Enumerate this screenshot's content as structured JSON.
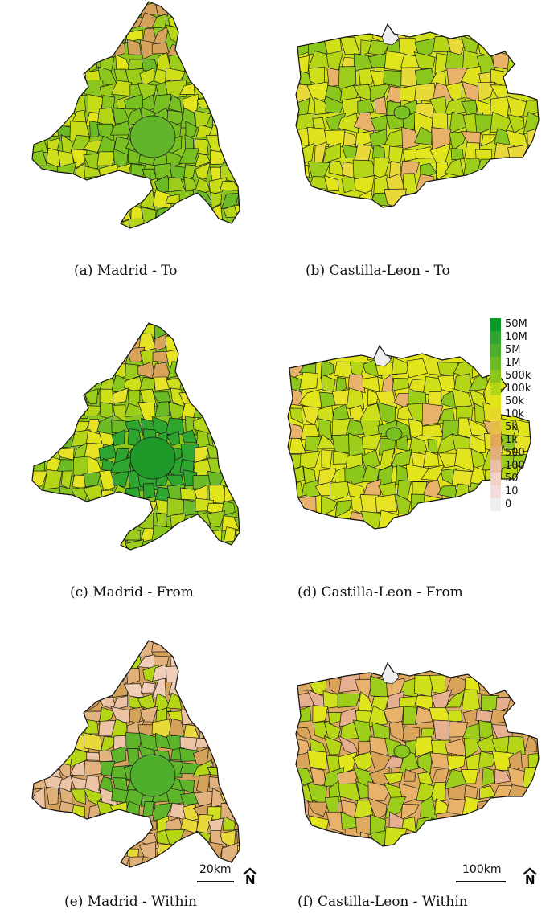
{
  "panels": [
    {
      "region": "madrid",
      "caption": "(a) Madrid - To",
      "palette": [
        "#8bc61d",
        "#9ccd1a",
        "#b5d617",
        "#cfe01a",
        "#6cba26",
        "#e2e51b",
        "#c7db17"
      ],
      "core": "#78bf22",
      "coreInner": "#62b52a",
      "edge": "#d4a25a"
    },
    {
      "region": "castilla",
      "caption": "(b) Castilla-Leon - To",
      "palette": [
        "#cfe01a",
        "#b5d617",
        "#e2e51b",
        "#9ccd1a",
        "#8bc61d",
        "#dfe21c",
        "#e8d83a"
      ],
      "core": "#8bc61d",
      "coreInner": "#78bf22",
      "edge": "#e8b26a"
    },
    {
      "region": "madrid",
      "caption": "(c) Madrid - From",
      "palette": [
        "#8bc61d",
        "#9ccd1a",
        "#b5d617",
        "#cfe01a",
        "#e2e51b",
        "#e8e227",
        "#6cba26"
      ],
      "core": "#2ea52f",
      "coreInner": "#1f9a2a",
      "edge": "#d9a35a"
    },
    {
      "region": "castilla",
      "caption": "(d) Castilla-Leon - From",
      "palette": [
        "#e2e51b",
        "#cfe01a",
        "#b5d617",
        "#e8e227",
        "#9ccd1a",
        "#dfe21c",
        "#8bc61d"
      ],
      "core": "#8bc61d",
      "coreInner": "#78bf22",
      "edge": "#e8b26a"
    },
    {
      "region": "madrid",
      "caption": "(e) Madrid - Within",
      "palette": [
        "#d4a25a",
        "#e0b07a",
        "#edc3a6",
        "#cfe01a",
        "#e8d83a",
        "#b5d617",
        "#e2b27f"
      ],
      "core": "#5fb52a",
      "coreInner": "#4fae2c",
      "edge": "#f0cdb7"
    },
    {
      "region": "castilla",
      "caption": "(f) Castilla-Leon - Within",
      "palette": [
        "#dfa960",
        "#e2e51b",
        "#cfe01a",
        "#e8b26a",
        "#b5d617",
        "#d9a35a",
        "#9ccd1a"
      ],
      "core": "#9ccd1a",
      "coreInner": "#8bc61d",
      "edge": "#e6b090"
    }
  ],
  "legend": [
    {
      "label": "50M",
      "color": "#0a9a2a"
    },
    {
      "label": "10M",
      "color": "#2ea52f"
    },
    {
      "label": "5M",
      "color": "#4fae2c"
    },
    {
      "label": "1M",
      "color": "#6cba26"
    },
    {
      "label": "500k",
      "color": "#8bc61d"
    },
    {
      "label": "100k",
      "color": "#b5d617"
    },
    {
      "label": "50k",
      "color": "#e2e51b"
    },
    {
      "label": "10k",
      "color": "#e6d72a"
    },
    {
      "label": "5k",
      "color": "#e4bd45"
    },
    {
      "label": "1k",
      "color": "#e1a85a"
    },
    {
      "label": "500",
      "color": "#e4ad7c"
    },
    {
      "label": "100",
      "color": "#eabfa6"
    },
    {
      "label": "50",
      "color": "#f0d2c6"
    },
    {
      "label": "10",
      "color": "#f3dcdc"
    },
    {
      "label": "0",
      "color": "#efefef"
    }
  ],
  "scalebars": [
    {
      "label": "20km"
    },
    {
      "label": "100km"
    }
  ],
  "north_arrow": {
    "letter": "N",
    "icon": "north-arrow-icon"
  }
}
